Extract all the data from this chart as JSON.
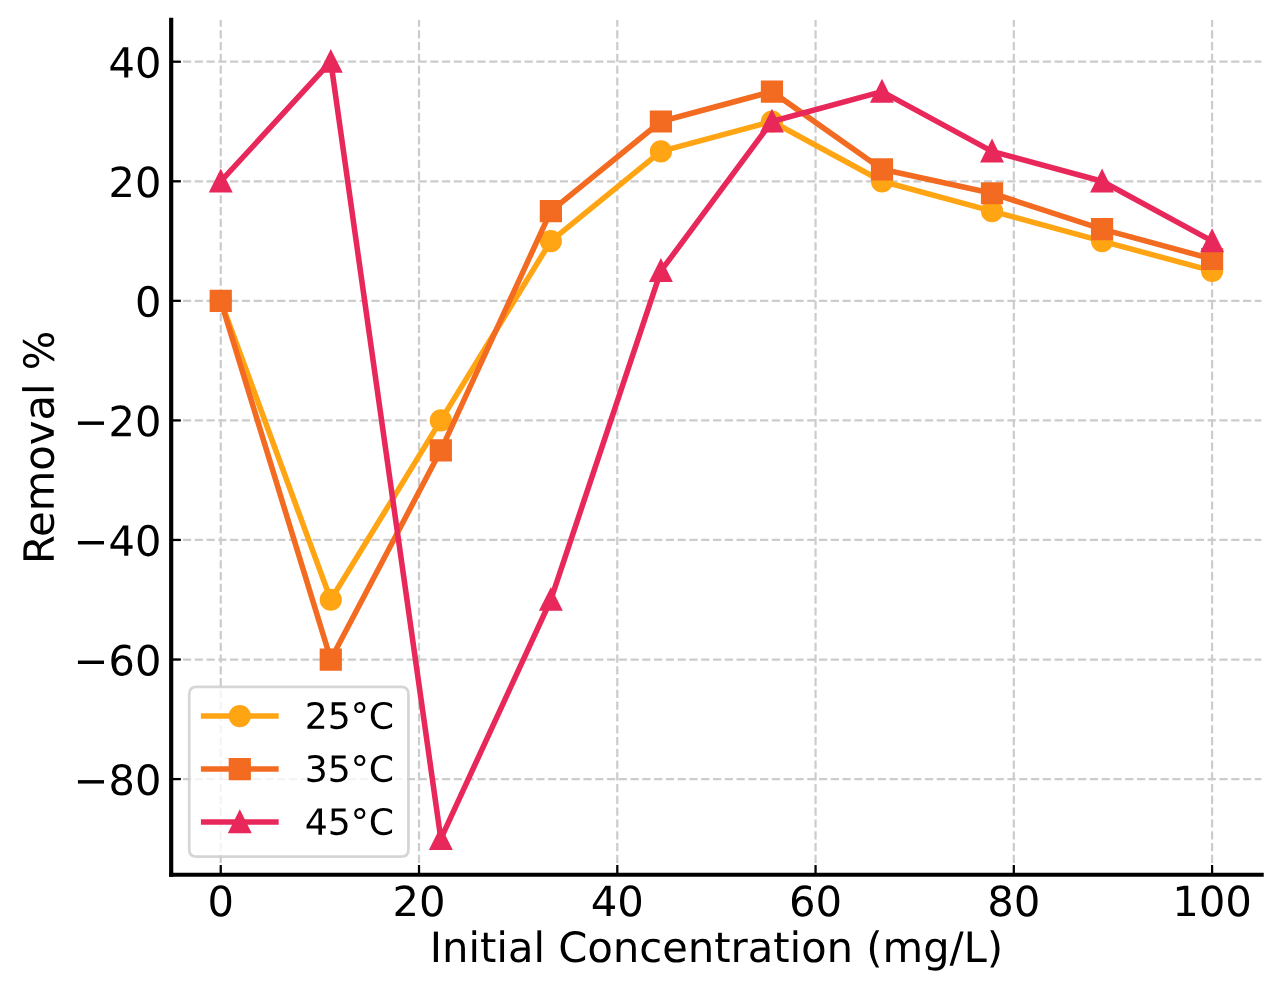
{
  "chart_data": {
    "type": "line",
    "xlabel": "Initial Concentration (mg/L)",
    "ylabel": "Removal %",
    "x": [
      0,
      11.1,
      22.2,
      33.3,
      44.4,
      55.6,
      66.7,
      77.8,
      88.9,
      100
    ],
    "xlim": [
      -5,
      105
    ],
    "xticks": [
      0,
      20,
      40,
      60,
      80,
      100
    ],
    "ylim": [
      -96,
      47
    ],
    "yticks": [
      -80,
      -60,
      -40,
      -20,
      0,
      20,
      40
    ],
    "grid": true,
    "legend": "bottom left",
    "series": [
      {
        "name": "25°C",
        "color": "#ffa514",
        "marker": "circle",
        "values": [
          0,
          -50,
          -20,
          10,
          25,
          30,
          20,
          15,
          10,
          5
        ]
      },
      {
        "name": "35°C",
        "color": "#f26b21",
        "marker": "square",
        "values": [
          0,
          -60,
          -25,
          15,
          30,
          35,
          22,
          18,
          12,
          7
        ]
      },
      {
        "name": "45°C",
        "color": "#e8285a",
        "marker": "triangle",
        "values": [
          20,
          40,
          -90,
          -50,
          5,
          30,
          35,
          25,
          20,
          10
        ]
      }
    ]
  }
}
